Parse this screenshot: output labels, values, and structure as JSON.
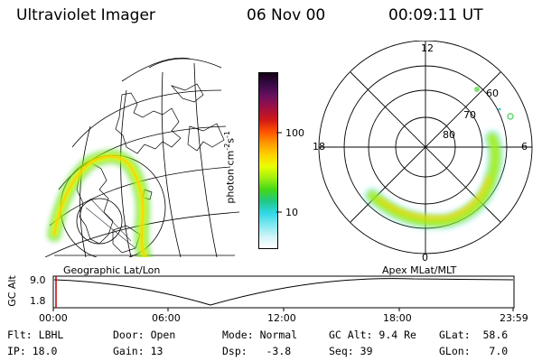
{
  "header": {
    "instrument": "Ultraviolet Imager",
    "date": "06 Nov 00",
    "time": "00:09:11 UT"
  },
  "colorbar": {
    "label": "photon cm",
    "label_sup1": "-2",
    "label_mid": "s",
    "label_sup2": "-1",
    "tick_100": "100",
    "tick_10": "10",
    "colors": [
      "#140014",
      "#3a0a48",
      "#6a1060",
      "#a01040",
      "#d01818",
      "#ff5000",
      "#ff9800",
      "#ffd000",
      "#e8ff00",
      "#a0ef10",
      "#40d818",
      "#20c888",
      "#30d8e8",
      "#80e8f0",
      "#d0f4f8",
      "#ffffff"
    ]
  },
  "geo_panel": {
    "caption": "Geographic Lat/Lon"
  },
  "polar_panel": {
    "caption": "Apex MLat/MLT",
    "mlt_top": "12",
    "mlt_left": "18",
    "mlt_right": "6",
    "mlt_bottom": "0",
    "lat_60": "60",
    "lat_70": "70",
    "lat_80": "80"
  },
  "altitude_plot": {
    "axis_label": "GC Alt",
    "ytick_top": "9.0",
    "ytick_bottom": "1.8",
    "xticks": [
      "00:00",
      "06:00",
      "12:00",
      "18:00",
      "23:59"
    ]
  },
  "info": {
    "filter_label": "Flt:",
    "filter_value": "LBHL",
    "ip_label": "IP:",
    "ip_value": "18.0",
    "door_label": "Door:",
    "door_value": "Open",
    "gain_label": "Gain:",
    "gain_value": "13",
    "mode_label": "Mode:",
    "mode_value": "Normal",
    "dsp_label": "Dsp:",
    "dsp_value": "-3.8",
    "gcalt_label": "GC Alt:",
    "gcalt_value": "9.4 Re",
    "seq_label": "Seq:",
    "seq_value": "39",
    "glat_label": "GLat:",
    "glat_value": "58.6",
    "glon_label": "GLon:",
    "glon_value": "7.0"
  }
}
